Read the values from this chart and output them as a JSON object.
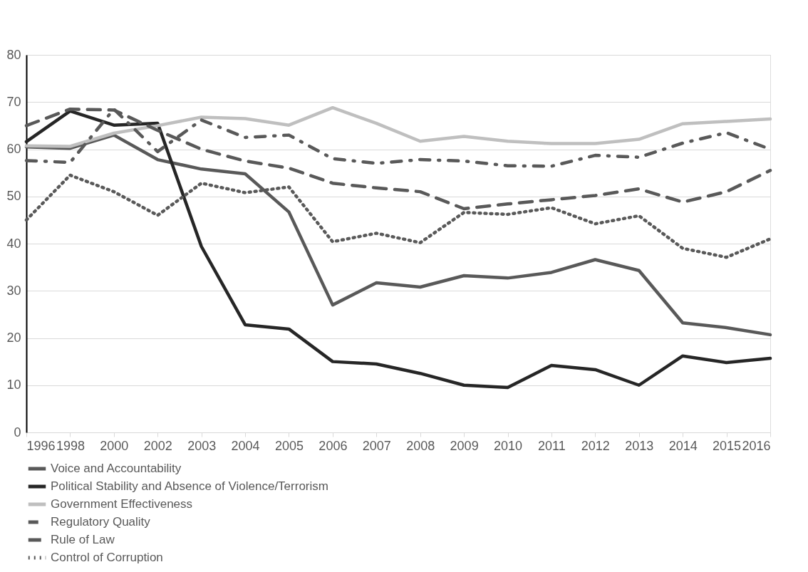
{
  "chart_data": {
    "type": "line",
    "categories": [
      "1996",
      "1998",
      "2000",
      "2002",
      "2003",
      "2004",
      "2005",
      "2006",
      "2007",
      "2008",
      "2009",
      "2010",
      "2011",
      "2012",
      "2013",
      "2014",
      "2015",
      "2016"
    ],
    "series": [
      {
        "name": "Voice and Accountability",
        "color": "#595959",
        "line_style": "solid",
        "values": [
          60.5,
          60.2,
          63,
          57.8,
          55.8,
          54.8,
          46.7,
          27,
          31.7,
          30.8,
          33.2,
          32.7,
          33.9,
          36.6,
          34.3,
          23.2,
          22.2,
          20.7
        ]
      },
      {
        "name": "Political Stability and Absence of Violence/Terrorism",
        "color": "#262626",
        "line_style": "solid",
        "values": [
          61.6,
          68.1,
          65.1,
          65.5,
          39.4,
          22.8,
          21.9,
          15,
          14.5,
          12.5,
          10,
          9.5,
          14.2,
          13.3,
          10,
          16.2,
          14.8,
          15.7
        ]
      },
      {
        "name": "Government Effectiveness",
        "color": "#bfbfbf",
        "line_style": "solid",
        "values": [
          60.7,
          60.6,
          63.4,
          65,
          66.8,
          66.5,
          65.1,
          68.8,
          65.5,
          61.7,
          62.7,
          61.7,
          61.2,
          61.2,
          62.1,
          65.4,
          65.9,
          66.4
        ]
      },
      {
        "name": "Regulatory Quality",
        "color": "#595959",
        "line_style": "dashdot",
        "values": [
          57.6,
          57.2,
          68.5,
          59.5,
          66.2,
          62.5,
          63,
          58,
          57,
          57.8,
          57.5,
          56.5,
          56.4,
          58.7,
          58.3,
          61.3,
          63.5,
          60
        ]
      },
      {
        "name": "Rule of Law",
        "color": "#595959",
        "line_style": "dashed",
        "values": [
          65,
          68.5,
          68.3,
          64,
          60,
          57.5,
          56,
          52.8,
          51.8,
          51,
          47.4,
          48.4,
          49.3,
          50.2,
          51.6,
          48.8,
          51,
          55.5
        ]
      },
      {
        "name": "Control of Corruption",
        "color": "#595959",
        "line_style": "dotted",
        "values": [
          45,
          54.5,
          51,
          46,
          52.8,
          50.8,
          52,
          40.4,
          42.2,
          40.2,
          46.6,
          46.2,
          47.6,
          44.2,
          45.9,
          39,
          37.1,
          41
        ]
      }
    ],
    "ylim": [
      0,
      80
    ],
    "yticks": [
      0,
      10,
      20,
      30,
      40,
      50,
      60,
      70,
      80
    ],
    "grid": "y",
    "legend": "bottom",
    "marker": "none"
  }
}
